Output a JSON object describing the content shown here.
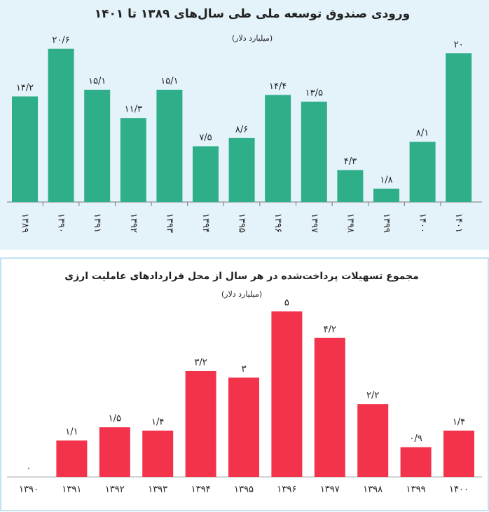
{
  "chart_data": [
    {
      "type": "bar",
      "title": "ورودی صندوق توسعه ملی طی سال‌های ۱۳۸۹ تا ۱۴۰۱",
      "subtitle": "(میلیارد دلار)",
      "categories": [
        "۱۳۸۹",
        "۱۳۹۰",
        "۱۳۹۱",
        "۱۳۹۲",
        "۱۳۹۳",
        "۱۳۹۴",
        "۱۳۹۵",
        "۱۳۹۶",
        "۱۳۹۷",
        "۱۳۹۸",
        "۱۳۹۹",
        "۱۴۰۰",
        "۱۴۰۱"
      ],
      "values": [
        14.2,
        20.6,
        15.1,
        11.3,
        15.1,
        7.5,
        8.6,
        14.4,
        13.5,
        4.3,
        1.8,
        8.1,
        20
      ],
      "value_labels": [
        "۱۴/۲",
        "۲۰/۶",
        "۱۵/۱",
        "۱۱/۳",
        "۱۵/۱",
        "۷/۵",
        "۸/۶",
        "۱۴/۴",
        "۱۳/۵",
        "۴/۳",
        "۱/۸",
        "۸/۱",
        "۲۰"
      ],
      "color": "#2fae8a"
    },
    {
      "type": "bar",
      "title": "مجموع تسهیلات پرداخت‌شده در هر سال از محل قراردادهای عاملیت ارزی",
      "subtitle": "(میلیارد دلار)",
      "categories": [
        "۱۳۹۰",
        "۱۳۹۱",
        "۱۳۹۲",
        "۱۳۹۳",
        "۱۳۹۴",
        "۱۳۹۵",
        "۱۳۹۶",
        "۱۳۹۷",
        "۱۳۹۸",
        "۱۳۹۹",
        "۱۴۰۰"
      ],
      "values": [
        0,
        1.1,
        1.5,
        1.4,
        3.2,
        3,
        5,
        4.2,
        2.2,
        0.9,
        1.4
      ],
      "value_labels": [
        "۰",
        "۱/۱",
        "۱/۵",
        "۱/۴",
        "۳/۲",
        "۳",
        "۵",
        "۴/۲",
        "۲/۲",
        "۰/۹",
        "۱/۴"
      ],
      "color": "#f3334c"
    }
  ]
}
